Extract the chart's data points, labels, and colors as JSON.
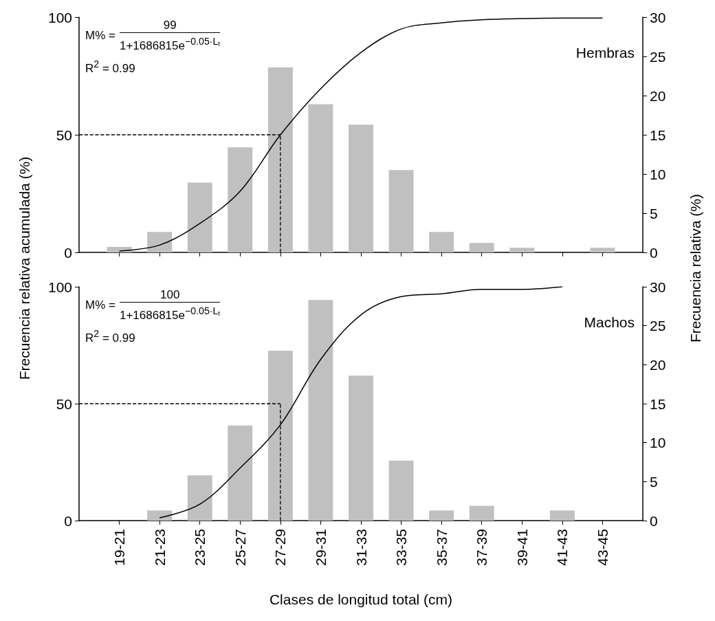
{
  "chart_data": [
    {
      "type": "bar",
      "title": "Hembras",
      "ylabel": "Frecuencia relativa acumulada (%)",
      "y2label": "Frecuencia relativa (%)",
      "annotations": [
        "M% =",
        "99",
        "1+1686815e$^{−0.05·Lₜ}$",
        "R$^{2}$ = 0.99"
      ],
      "categories": [
        "19-21",
        "21-23",
        "23-25",
        "25-27",
        "27-29",
        "29-31",
        "31-33",
        "33-35",
        "35-37",
        "37-39",
        "39-41",
        "41-43",
        "43-45"
      ],
      "series": [
        {
          "axis": "y2",
          "color": "#c0c0c0",
          "values": [
            0.7,
            2.6,
            8.9,
            13.4,
            23.6,
            18.9,
            16.3,
            10.5,
            2.6,
            1.2,
            0.6,
            0,
            0.6
          ]
        },
        {
          "type": "line",
          "color": "#000000",
          "values": [
            0.6,
            3.1,
            12.3,
            26,
            50,
            69.6,
            85,
            95,
            97.6,
            98.9,
            99.4,
            99.6,
            99.6
          ]
        }
      ],
      "ylim": [
        0,
        100
      ],
      "yticks": [
        0,
        50,
        100
      ],
      "y2lim": [
        0,
        30
      ],
      "y2ticks": [
        0,
        5,
        10,
        15,
        20,
        25,
        30
      ],
      "ref_lines": [
        {
          "axis": "y",
          "value": 50,
          "color": "#000000",
          "line_style": "dashed"
        },
        {
          "axis": "x",
          "value": "27-29",
          "color": "#000000",
          "line_style": "dashed"
        }
      ],
      "marker": "none",
      "grid": false,
      "tick_labels": "y"
    },
    {
      "type": "bar",
      "title": "Machos",
      "xlabel": "Clases de longitud total (cm)",
      "annotations": [
        "M% =",
        "100",
        "1+1686815e$^{−0.05·Lₜ}$",
        "R$^{2}$ = 0.99"
      ],
      "categories": [
        "19-21",
        "21-23",
        "23-25",
        "25-27",
        "27-29",
        "29-31",
        "31-33",
        "33-35",
        "35-37",
        "37-39",
        "39-41",
        "41-43",
        "43-45"
      ],
      "series": [
        {
          "axis": "y2",
          "color": "#c0c0c0",
          "values": [
            0,
            1.3,
            5.8,
            12.2,
            21.8,
            28.3,
            18.6,
            7.7,
            1.3,
            1.9,
            0,
            1.3,
            0
          ]
        },
        {
          "type": "line",
          "color": "#000000",
          "values": [
            null,
            1.2,
            7,
            22.5,
            41,
            68.9,
            88,
            95.8,
            97,
            98.9,
            98.9,
            100,
            null
          ]
        }
      ],
      "ylim": [
        0,
        100
      ],
      "yticks": [
        0,
        50,
        100
      ],
      "y2lim": [
        0,
        30
      ],
      "y2ticks": [
        0,
        5,
        10,
        15,
        20,
        25,
        30
      ],
      "ref_lines": [
        {
          "axis": "y",
          "value": 50,
          "color": "#000000",
          "line_style": "dashed"
        },
        {
          "axis": "x",
          "value": "27-29",
          "color": "#000000",
          "line_style": "dashed"
        }
      ],
      "marker": "none",
      "grid": false
    }
  ]
}
